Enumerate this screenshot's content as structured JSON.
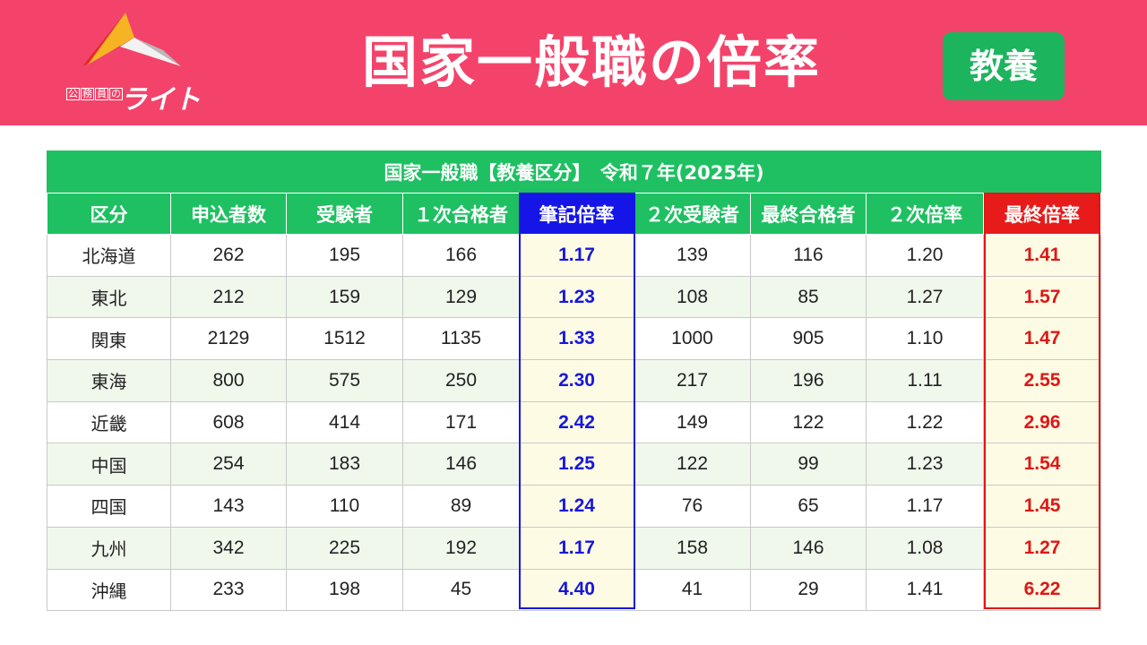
{
  "header": {
    "title": "国家一般職の倍率",
    "badge": "教養",
    "logo": {
      "small_chars": [
        "公",
        "務",
        "員",
        "の"
      ],
      "brand": "ライト"
    }
  },
  "table": {
    "caption": "国家一般職【教養区分】　令和７年(2025年)",
    "columns": [
      "区分",
      "申込者数",
      "受験者",
      "１次合格者",
      "筆記倍率",
      "２次受験者",
      "最終合格者",
      "２次倍率",
      "最終倍率"
    ],
    "rows": [
      [
        "北海道",
        "262",
        "195",
        "166",
        "1.17",
        "139",
        "116",
        "1.20",
        "1.41"
      ],
      [
        "東北",
        "212",
        "159",
        "129",
        "1.23",
        "108",
        "85",
        "1.27",
        "1.57"
      ],
      [
        "関東",
        "2129",
        "1512",
        "1135",
        "1.33",
        "1000",
        "905",
        "1.10",
        "1.47"
      ],
      [
        "東海",
        "800",
        "575",
        "250",
        "2.30",
        "217",
        "196",
        "1.11",
        "2.55"
      ],
      [
        "近畿",
        "608",
        "414",
        "171",
        "2.42",
        "149",
        "122",
        "1.22",
        "2.96"
      ],
      [
        "中国",
        "254",
        "183",
        "146",
        "1.25",
        "122",
        "99",
        "1.23",
        "1.54"
      ],
      [
        "四国",
        "143",
        "110",
        "89",
        "1.24",
        "76",
        "65",
        "1.17",
        "1.45"
      ],
      [
        "九州",
        "342",
        "225",
        "192",
        "1.17",
        "158",
        "146",
        "1.08",
        "1.27"
      ],
      [
        "沖縄",
        "233",
        "198",
        "45",
        "4.40",
        "41",
        "29",
        "1.41",
        "6.22"
      ]
    ]
  },
  "colors": {
    "header_bg": "#f4436a",
    "table_green": "#1ec062",
    "badge_green": "#1db45e",
    "written_ratio_blue": "#1616e0",
    "final_ratio_red": "#e01616",
    "highlight_bg": "#fdfbe3"
  }
}
